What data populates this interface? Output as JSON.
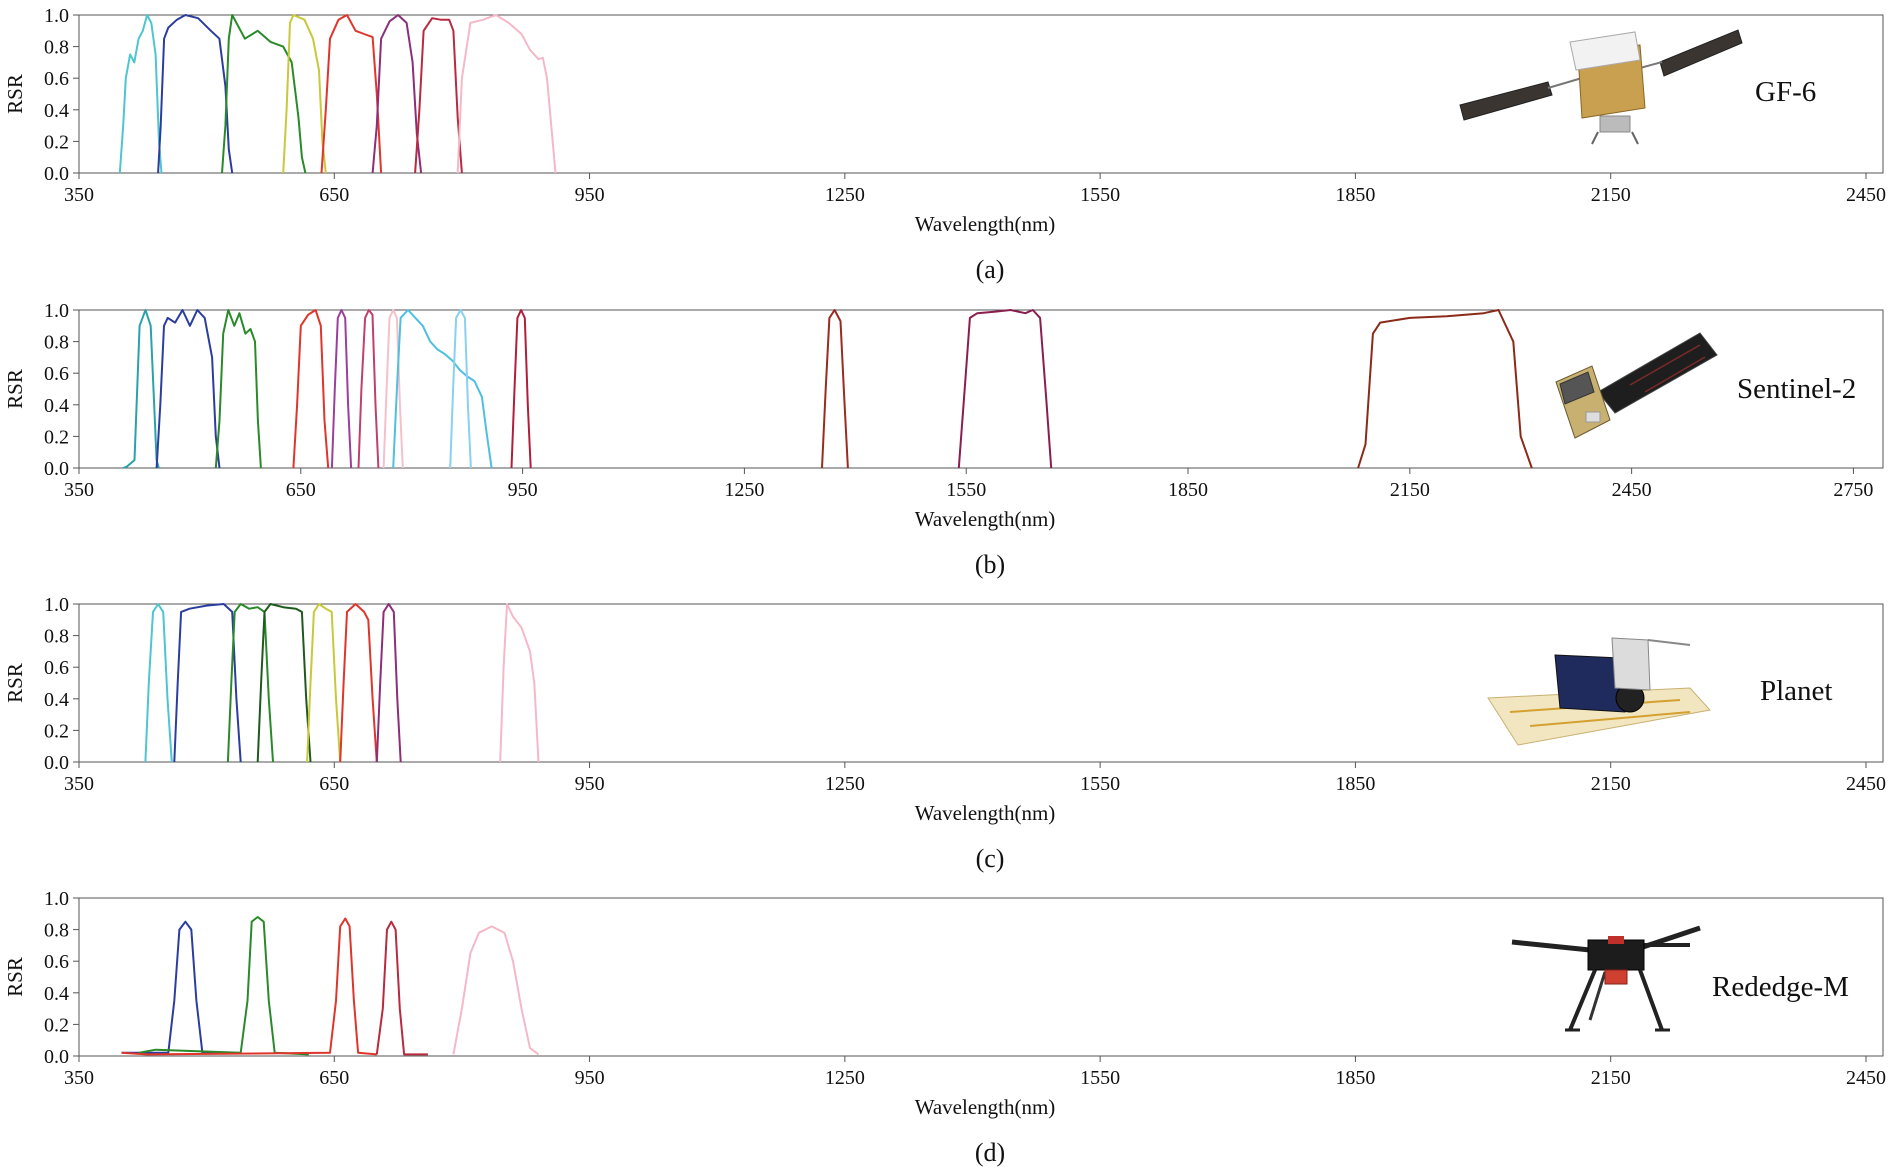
{
  "chart_data": [
    {
      "type": "line",
      "panel_label": "(a)",
      "satellite": "GF-6",
      "xlabel": "Wavelength(nm)",
      "ylabel": "RSR",
      "xlim": [
        350,
        2470
      ],
      "ylim": [
        0,
        1.0
      ],
      "xticks": [
        350,
        650,
        950,
        1250,
        1550,
        1850,
        2150,
        2450
      ],
      "yticks": [
        "0.0",
        "0.2",
        "0.4",
        "0.6",
        "0.8",
        "1.0"
      ],
      "grid": false,
      "legend": "none",
      "series": [
        {
          "color": "#4dc6cf",
          "x": [
            398,
            402,
            405,
            410,
            415,
            420,
            425,
            430,
            435,
            440,
            444,
            447
          ],
          "y": [
            0,
            0.3,
            0.6,
            0.75,
            0.7,
            0.85,
            0.9,
            1.0,
            0.95,
            0.75,
            0.2,
            0
          ]
        },
        {
          "color": "#2b3d9e",
          "x": [
            443,
            446,
            450,
            455,
            465,
            475,
            490,
            505,
            515,
            522,
            526,
            530
          ],
          "y": [
            0,
            0.3,
            0.85,
            0.92,
            0.97,
            1.0,
            0.98,
            0.9,
            0.85,
            0.55,
            0.15,
            0
          ]
        },
        {
          "color": "#2a8a2a",
          "x": [
            518,
            522,
            526,
            530,
            545,
            560,
            575,
            590,
            600,
            608,
            612,
            616
          ],
          "y": [
            0,
            0.3,
            0.85,
            1.0,
            0.85,
            0.9,
            0.83,
            0.8,
            0.7,
            0.35,
            0.1,
            0
          ]
        },
        {
          "color": "#c8c83a",
          "x": [
            590,
            594,
            598,
            602,
            615,
            625,
            632,
            636,
            640
          ],
          "y": [
            0,
            0.4,
            0.95,
            1.0,
            0.97,
            0.85,
            0.65,
            0.2,
            0
          ]
        },
        {
          "color": "#e0352b",
          "x": [
            635,
            640,
            645,
            655,
            665,
            675,
            685,
            695,
            700,
            705
          ],
          "y": [
            0,
            0.4,
            0.85,
            0.97,
            1.0,
            0.9,
            0.88,
            0.86,
            0.5,
            0
          ]
        },
        {
          "color": "#8c2e78",
          "x": [
            695,
            700,
            705,
            715,
            725,
            735,
            742,
            747,
            752
          ],
          "y": [
            0,
            0.3,
            0.85,
            0.96,
            1.0,
            0.95,
            0.7,
            0.25,
            0
          ]
        },
        {
          "color": "#b82a3f",
          "x": [
            745,
            750,
            755,
            765,
            775,
            785,
            790,
            795,
            800
          ],
          "y": [
            0,
            0.4,
            0.9,
            0.98,
            0.97,
            0.97,
            0.9,
            0.35,
            0
          ]
        },
        {
          "color": "#f5b8c8",
          "x": [
            795,
            800,
            810,
            825,
            840,
            855,
            870,
            880,
            890,
            895,
            900,
            910
          ],
          "y": [
            0,
            0.6,
            0.95,
            0.97,
            1.0,
            0.95,
            0.88,
            0.78,
            0.72,
            0.73,
            0.6,
            0
          ]
        }
      ]
    },
    {
      "type": "line",
      "panel_label": "(b)",
      "satellite": "Sentinel-2",
      "xlabel": "Wavelength(nm)",
      "ylabel": "RSR",
      "xlim": [
        350,
        2790
      ],
      "ylim": [
        0,
        1.0
      ],
      "xticks": [
        350,
        650,
        950,
        1250,
        1550,
        1850,
        2150,
        2450,
        2750
      ],
      "yticks": [
        "0.0",
        "0.2",
        "0.4",
        "0.6",
        "0.8",
        "1.0"
      ],
      "grid": false,
      "legend": "none",
      "series": [
        {
          "color": "#2aa2a8",
          "x": [
            410,
            415,
            425,
            432,
            440,
            447,
            455,
            458
          ],
          "y": [
            0,
            0.01,
            0.05,
            0.9,
            1.0,
            0.9,
            0.05,
            0
          ]
        },
        {
          "color": "#2b3d9e",
          "x": [
            455,
            460,
            465,
            470,
            480,
            490,
            500,
            510,
            520,
            530,
            535,
            540
          ],
          "y": [
            0,
            0.4,
            0.9,
            0.95,
            0.92,
            1.0,
            0.9,
            1.0,
            0.95,
            0.7,
            0.2,
            0
          ]
        },
        {
          "color": "#2a8a2a",
          "x": [
            535,
            540,
            545,
            552,
            560,
            567,
            575,
            582,
            588,
            592,
            596
          ],
          "y": [
            0,
            0.3,
            0.85,
            1.0,
            0.9,
            0.98,
            0.85,
            0.88,
            0.8,
            0.3,
            0
          ]
        },
        {
          "color": "#e0352b",
          "x": [
            640,
            645,
            650,
            660,
            670,
            677,
            682,
            687
          ],
          "y": [
            0,
            0.4,
            0.9,
            0.97,
            1.0,
            0.9,
            0.3,
            0
          ]
        },
        {
          "color": "#9b3f9b",
          "x": [
            692,
            696,
            700,
            705,
            710,
            714,
            718
          ],
          "y": [
            0,
            0.5,
            0.95,
            1.0,
            0.95,
            0.4,
            0
          ]
        },
        {
          "color": "#c0406b",
          "x": [
            728,
            732,
            737,
            742,
            747,
            751,
            755
          ],
          "y": [
            0,
            0.5,
            0.95,
            1.0,
            0.97,
            0.4,
            0
          ]
        },
        {
          "color": "#f5c0cc",
          "x": [
            762,
            766,
            770,
            775,
            780,
            784,
            788
          ],
          "y": [
            0,
            0.5,
            0.95,
            1.0,
            0.95,
            0.4,
            0
          ]
        },
        {
          "color": "#4dbfe0",
          "x": [
            775,
            780,
            785,
            795,
            805,
            815,
            825,
            835,
            845,
            855,
            865,
            875,
            885,
            895,
            902,
            908
          ],
          "y": [
            0,
            0.5,
            0.95,
            1.0,
            0.95,
            0.9,
            0.8,
            0.75,
            0.72,
            0.68,
            0.62,
            0.58,
            0.55,
            0.45,
            0.2,
            0
          ]
        },
        {
          "color": "#8ad0f0",
          "x": [
            852,
            856,
            860,
            866,
            872,
            876,
            880
          ],
          "y": [
            0,
            0.5,
            0.95,
            1.0,
            0.95,
            0.4,
            0
          ]
        },
        {
          "color": "#b01e3c",
          "x": [
            935,
            939,
            943,
            948,
            953,
            957,
            961
          ],
          "y": [
            0,
            0.5,
            0.95,
            1.0,
            0.95,
            0.4,
            0
          ]
        },
        {
          "color": "#9a2b1e",
          "x": [
            1355,
            1360,
            1365,
            1372,
            1380,
            1385,
            1390
          ],
          "y": [
            0,
            0.5,
            0.95,
            1.0,
            0.93,
            0.45,
            0
          ]
        },
        {
          "color": "#8a1e4e",
          "x": [
            1540,
            1548,
            1555,
            1565,
            1590,
            1610,
            1630,
            1640,
            1650,
            1658,
            1665
          ],
          "y": [
            0,
            0.5,
            0.95,
            0.98,
            0.99,
            1.0,
            0.98,
            1.0,
            0.95,
            0.45,
            0
          ]
        },
        {
          "color": "#8a2a18",
          "x": [
            2080,
            2090,
            2100,
            2110,
            2150,
            2200,
            2250,
            2270,
            2290,
            2300,
            2315
          ],
          "y": [
            0,
            0.15,
            0.85,
            0.92,
            0.95,
            0.96,
            0.98,
            1.0,
            0.8,
            0.2,
            0
          ]
        }
      ]
    },
    {
      "type": "line",
      "panel_label": "(c)",
      "satellite": "Planet",
      "xlabel": "Wavelength(nm)",
      "ylabel": "RSR",
      "xlim": [
        350,
        2470
      ],
      "ylim": [
        0,
        1.0
      ],
      "xticks": [
        350,
        650,
        950,
        1250,
        1550,
        1850,
        2150,
        2450
      ],
      "yticks": [
        "0.0",
        "0.2",
        "0.4",
        "0.6",
        "0.8",
        "1.0"
      ],
      "grid": false,
      "legend": "none",
      "series": [
        {
          "color": "#4dc6cf",
          "x": [
            428,
            432,
            437,
            443,
            449,
            454,
            459
          ],
          "y": [
            0,
            0.5,
            0.95,
            1.0,
            0.95,
            0.4,
            0
          ]
        },
        {
          "color": "#2b3d9e",
          "x": [
            462,
            466,
            470,
            480,
            500,
            520,
            530,
            535,
            540
          ],
          "y": [
            0,
            0.5,
            0.95,
            0.97,
            0.99,
            1.0,
            0.95,
            0.4,
            0
          ]
        },
        {
          "color": "#2a8a2a",
          "x": [
            525,
            529,
            533,
            540,
            550,
            560,
            568,
            573,
            578
          ],
          "y": [
            0,
            0.5,
            0.95,
            1.0,
            0.97,
            0.98,
            0.95,
            0.4,
            0
          ]
        },
        {
          "color": "#1e5a1e",
          "x": [
            560,
            564,
            568,
            575,
            590,
            605,
            612,
            617,
            622
          ],
          "y": [
            0,
            0.5,
            0.95,
            1.0,
            0.98,
            0.97,
            0.95,
            0.4,
            0
          ]
        },
        {
          "color": "#c8c83a",
          "x": [
            618,
            622,
            626,
            632,
            640,
            647,
            652,
            657
          ],
          "y": [
            0,
            0.5,
            0.95,
            1.0,
            0.97,
            0.95,
            0.4,
            0
          ]
        },
        {
          "color": "#e0352b",
          "x": [
            657,
            661,
            665,
            675,
            685,
            690,
            695,
            700
          ],
          "y": [
            0,
            0.5,
            0.95,
            1.0,
            0.95,
            0.9,
            0.4,
            0
          ]
        },
        {
          "color": "#8c2e78",
          "x": [
            700,
            704,
            708,
            714,
            720,
            724,
            728
          ],
          "y": [
            0,
            0.5,
            0.95,
            1.0,
            0.95,
            0.4,
            0
          ]
        },
        {
          "color": "#f5b8c8",
          "x": [
            845,
            849,
            853,
            860,
            870,
            880,
            885,
            890
          ],
          "y": [
            0,
            0.6,
            1.0,
            0.92,
            0.85,
            0.7,
            0.5,
            0
          ]
        }
      ]
    },
    {
      "type": "line",
      "panel_label": "(d)",
      "satellite": "Rededge-M",
      "xlabel": "Wavelength(nm)",
      "ylabel": "RSR",
      "xlim": [
        350,
        2470
      ],
      "ylim": [
        0,
        1.0
      ],
      "xticks": [
        350,
        650,
        950,
        1250,
        1550,
        1850,
        2150,
        2450
      ],
      "yticks": [
        "0.0",
        "0.2",
        "0.4",
        "0.6",
        "0.8",
        "1.0"
      ],
      "grid": false,
      "legend": "none",
      "series": [
        {
          "color": "#2b3d9e",
          "x": [
            400,
            420,
            455,
            462,
            468,
            475,
            482,
            488,
            495,
            520
          ],
          "y": [
            0.02,
            0.02,
            0.02,
            0.35,
            0.8,
            0.85,
            0.8,
            0.35,
            0.02,
            0.02
          ]
        },
        {
          "color": "#2a8a2a",
          "x": [
            420,
            440,
            540,
            548,
            553,
            560,
            567,
            573,
            580,
            620
          ],
          "y": [
            0.02,
            0.04,
            0.02,
            0.35,
            0.85,
            0.88,
            0.85,
            0.35,
            0.02,
            0.01
          ]
        },
        {
          "color": "#e0352b",
          "x": [
            400,
            430,
            645,
            652,
            657,
            663,
            668,
            673,
            678,
            700
          ],
          "y": [
            0.02,
            0.01,
            0.02,
            0.35,
            0.82,
            0.87,
            0.82,
            0.35,
            0.02,
            0.01
          ]
        },
        {
          "color": "#b82a3f",
          "x": [
            700,
            707,
            712,
            717,
            722,
            727,
            732,
            760
          ],
          "y": [
            0.01,
            0.3,
            0.8,
            0.85,
            0.8,
            0.3,
            0.01,
            0.01
          ]
        },
        {
          "color": "#f5b8c8",
          "x": [
            790,
            800,
            810,
            820,
            835,
            850,
            860,
            870,
            880,
            890
          ],
          "y": [
            0.01,
            0.3,
            0.65,
            0.78,
            0.82,
            0.78,
            0.6,
            0.3,
            0.05,
            0.01
          ]
        }
      ]
    }
  ]
}
